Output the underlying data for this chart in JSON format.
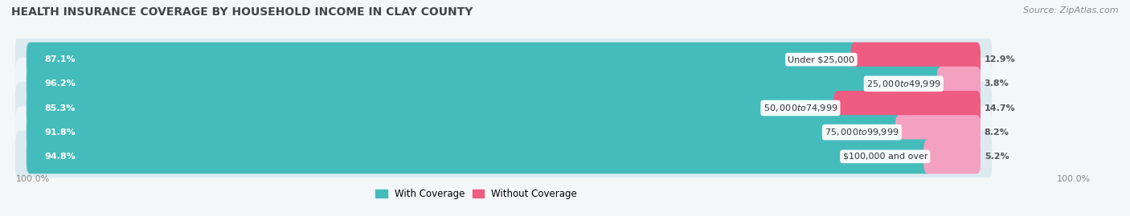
{
  "title": "HEALTH INSURANCE COVERAGE BY HOUSEHOLD INCOME IN CLAY COUNTY",
  "source": "Source: ZipAtlas.com",
  "categories": [
    "Under $25,000",
    "$25,000 to $49,999",
    "$50,000 to $74,999",
    "$75,000 to $99,999",
    "$100,000 and over"
  ],
  "with_coverage": [
    87.1,
    96.2,
    85.3,
    91.8,
    94.8
  ],
  "without_coverage": [
    12.9,
    3.8,
    14.7,
    8.2,
    5.2
  ],
  "coverage_color": "#45BCBC",
  "no_coverage_color_saturated": "#EE5C82",
  "no_coverage_color_light": "#F4A0C0",
  "row_bg_dark": "#DDEAF0",
  "row_bg_light": "#EEF4F8",
  "outer_bg": "#F4F7FA",
  "label_color_white": "#FFFFFF",
  "label_color_dark": "#555555",
  "title_fontsize": 10,
  "label_fontsize": 8,
  "tick_fontsize": 8,
  "legend_fontsize": 8.5,
  "source_fontsize": 8,
  "figsize": [
    14.06,
    2.69
  ],
  "dpi": 100
}
